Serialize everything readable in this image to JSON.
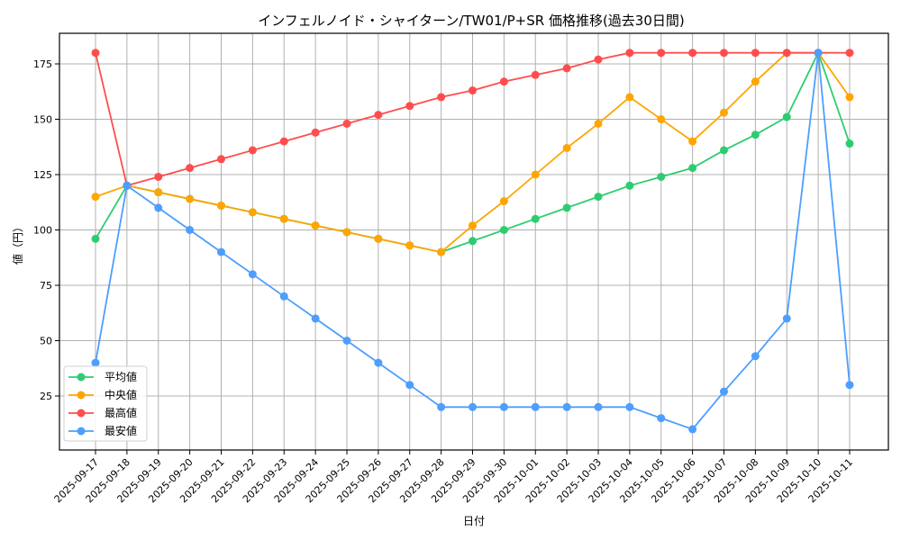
{
  "chart_data": {
    "type": "line",
    "title": "インフェルノイド・シャイターン/TW01/P+SR 価格推移(過去30日間)",
    "xlabel": "日付",
    "ylabel": "値（円）",
    "ylim": [
      2,
      189
    ],
    "yticks": [
      25,
      50,
      75,
      100,
      125,
      150,
      175
    ],
    "grid": true,
    "legend_position": "lower left",
    "categories": [
      "2025-09-17",
      "2025-09-18",
      "2025-09-19",
      "2025-09-20",
      "2025-09-21",
      "2025-09-22",
      "2025-09-23",
      "2025-09-24",
      "2025-09-25",
      "2025-09-26",
      "2025-09-27",
      "2025-09-28",
      "2025-09-29",
      "2025-09-30",
      "2025-10-01",
      "2025-10-02",
      "2025-10-03",
      "2025-10-04",
      "2025-10-05",
      "2025-10-06",
      "2025-10-07",
      "2025-10-08",
      "2025-10-09",
      "2025-10-10",
      "2025-10-11"
    ],
    "series": [
      {
        "name": "平均値",
        "color": "#2ecc71",
        "values": [
          96,
          120,
          117,
          114,
          111,
          108,
          105,
          102,
          99,
          96,
          93,
          90,
          95,
          100,
          105,
          110,
          115,
          120,
          124,
          128,
          136,
          143,
          151,
          180,
          139
        ]
      },
      {
        "name": "中央値",
        "color": "#ffa500",
        "values": [
          115,
          120,
          117,
          114,
          111,
          108,
          105,
          102,
          99,
          96,
          93,
          90,
          102,
          113,
          125,
          137,
          148,
          160,
          150,
          140,
          153,
          167,
          180,
          180,
          160
        ]
      },
      {
        "name": "最高値",
        "color": "#ff4d4d",
        "values": [
          180,
          120,
          124,
          128,
          132,
          136,
          140,
          144,
          148,
          152,
          156,
          160,
          163,
          167,
          170,
          173,
          177,
          180,
          180,
          180,
          180,
          180,
          180,
          180,
          180
        ]
      },
      {
        "name": "最安値",
        "color": "#4d9eff",
        "values": [
          40,
          120,
          110,
          100,
          90,
          80,
          70,
          60,
          50,
          40,
          30,
          20,
          20,
          20,
          20,
          20,
          20,
          20,
          15,
          10,
          27,
          43,
          60,
          180,
          30
        ]
      }
    ]
  }
}
